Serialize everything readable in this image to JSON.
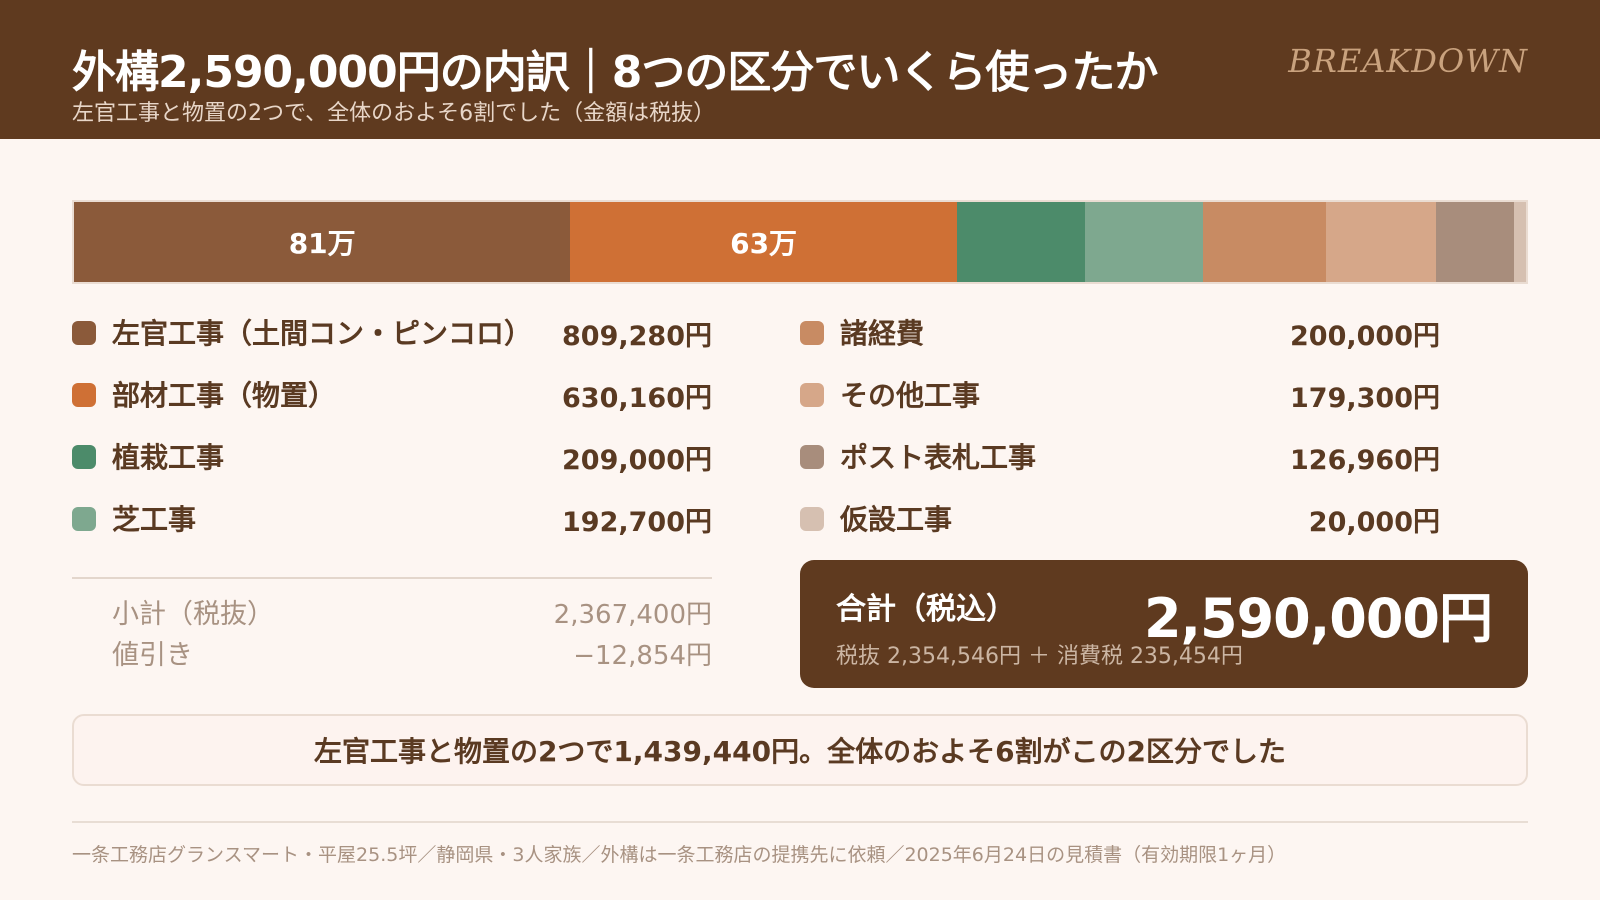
{
  "header": {
    "title": "外構2,590,000円の内訳｜8つの区分でいくら使ったか",
    "subtitle": "左官工事と物置の2つで、全体のおよそ6割でした（金額は税抜）",
    "tag": "BREAKDOWN"
  },
  "colors": {
    "header_bg": "#5f3a1f",
    "page_bg": "#fdf6f2"
  },
  "chart_data": {
    "type": "bar",
    "orientation": "horizontal-stacked",
    "unit": "円",
    "categories": [
      "左官工事（土間コン・ピンコロ）",
      "部材工事（物置）",
      "植栽工事",
      "芝工事",
      "諸経費",
      "その他工事",
      "ポスト表札工事",
      "仮設工事"
    ],
    "values": [
      809280,
      630160,
      209000,
      192700,
      200000,
      179300,
      126960,
      20000
    ],
    "colors": [
      "#8b5a3a",
      "#cf7035",
      "#4c8b6a",
      "#7ea88f",
      "#c88b63",
      "#d6a789",
      "#a88d7c",
      "#d6c0b1"
    ],
    "bar_labels": [
      "81万",
      "63万",
      "",
      "",
      "",
      "",
      "",
      ""
    ],
    "value_labels": [
      "809,280円",
      "630,160円",
      "209,000円",
      "192,700円",
      "200,000円",
      "179,300円",
      "126,960円",
      "20,000円"
    ]
  },
  "summary": {
    "subtotal_label": "小計（税抜）",
    "subtotal_value": "2,367,400円",
    "discount_label": "値引き",
    "discount_value": "−12,854円",
    "total_label": "合計（税込）",
    "total_value": "2,590,000円",
    "total_detail": "税抜 2,354,546円 ＋ 消費税 235,454円"
  },
  "callout": "左官工事と物置の2つで1,439,440円。全体のおよそ6割がこの2区分でした",
  "footer": "一条工務店グランスマート・平屋25.5坪／静岡県・3人家族／外構は一条工務店の提携先に依頼／2025年6月24日の見積書（有効期限1ヶ月）"
}
